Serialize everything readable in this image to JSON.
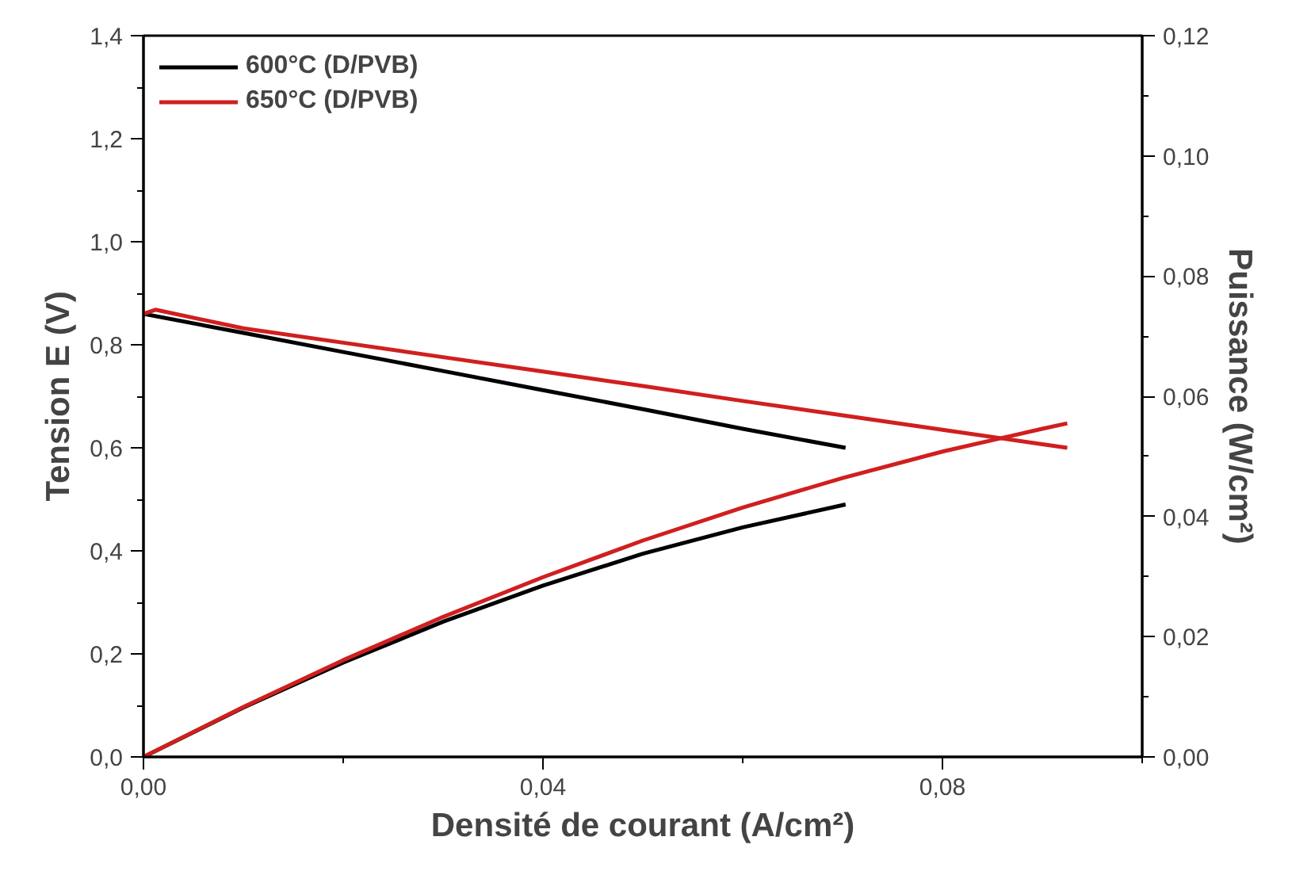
{
  "chart_data": {
    "type": "line",
    "xlabel": "Densité de courant (A/cm²)",
    "ylabel": "Tension E (V)",
    "y2label": "Puissance (W/cm²)",
    "xlim": [
      0,
      0.1
    ],
    "ylim": [
      0,
      1.4
    ],
    "y2lim": [
      0,
      0.12
    ],
    "xticks": [
      {
        "value": 0,
        "label": "0,00"
      },
      {
        "value": 0.04,
        "label": "0,04"
      },
      {
        "value": 0.08,
        "label": "0,08"
      }
    ],
    "yticks": [
      {
        "value": 0,
        "label": "0,0"
      },
      {
        "value": 0.2,
        "label": "0,2"
      },
      {
        "value": 0.4,
        "label": "0,4"
      },
      {
        "value": 0.6,
        "label": "0,6"
      },
      {
        "value": 0.8,
        "label": "0,8"
      },
      {
        "value": 1.0,
        "label": "1,0"
      },
      {
        "value": 1.2,
        "label": "1,2"
      },
      {
        "value": 1.4,
        "label": "1,4"
      }
    ],
    "y2ticks": [
      {
        "value": 0,
        "label": "0,00"
      },
      {
        "value": 0.02,
        "label": "0,02"
      },
      {
        "value": 0.04,
        "label": "0,04"
      },
      {
        "value": 0.06,
        "label": "0,06"
      },
      {
        "value": 0.08,
        "label": "0,08"
      },
      {
        "value": 0.1,
        "label": "0,10"
      },
      {
        "value": 0.12,
        "label": "0,12"
      }
    ],
    "grid": false,
    "legend": "top left",
    "marker": "none",
    "line_style": "solid",
    "series": [
      {
        "name": "600°C (D/PVB)",
        "color": "#000000",
        "x": [
          0,
          0.01,
          0.02,
          0.03,
          0.04,
          0.05,
          0.06,
          0.0703
        ],
        "values": [
          0.86,
          0.823,
          0.786,
          0.749,
          0.712,
          0.675,
          0.637,
          0.6
        ]
      },
      {
        "name": "650°C (D/PVB)",
        "color": "#d01f1f",
        "x": [
          0,
          0.0012,
          0.01,
          0.02,
          0.03,
          0.04,
          0.05,
          0.06,
          0.07,
          0.08,
          0.09,
          0.0925
        ],
        "values": [
          0.86,
          0.868,
          0.832,
          0.804,
          0.776,
          0.748,
          0.72,
          0.691,
          0.663,
          0.635,
          0.607,
          0.6
        ]
      },
      {
        "color": "#000000",
        "axis": "y2",
        "x": [
          0,
          0.01,
          0.02,
          0.03,
          0.04,
          0.05,
          0.06,
          0.0703
        ],
        "values": [
          0,
          0.0082,
          0.0157,
          0.0225,
          0.0285,
          0.0338,
          0.0382,
          0.042
        ]
      },
      {
        "color": "#d01f1f",
        "axis": "y2",
        "x": [
          0,
          0.01,
          0.02,
          0.03,
          0.04,
          0.05,
          0.06,
          0.07,
          0.08,
          0.09,
          0.0925
        ],
        "values": [
          0,
          0.0083,
          0.0161,
          0.0233,
          0.0299,
          0.036,
          0.0415,
          0.0464,
          0.0508,
          0.0546,
          0.0555
        ]
      }
    ]
  }
}
